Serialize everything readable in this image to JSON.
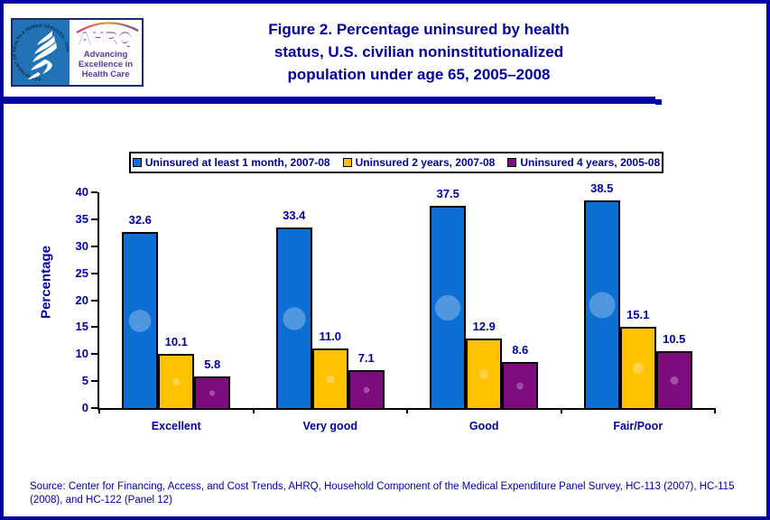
{
  "page": {
    "title_lines": [
      "Figure 2. Percentage uninsured by health",
      "status, U.S. civilian noninstitutionalized",
      "population under age 65, 2005–2008"
    ],
    "source_text": "Source: Center for Financing, Access, and Cost Trends, AHRQ, Household Component of the Medical Expenditure Panel Survey, HC-113 (2007), HC-115 (2008), and HC-122 (Panel 12)"
  },
  "logo": {
    "seal_text": "DEPARTMENT OF HEALTH & HUMAN SERVICES · USA",
    "ahrq": "AHRQ",
    "tagline_lines": [
      "Advancing",
      "Excellence in",
      "Health Care"
    ]
  },
  "colors": {
    "navy_text": "#000099",
    "frame_border": "#0000a0",
    "bar_blue": "#0d6fd4",
    "bar_gold": "#ffc200",
    "bar_purple": "#7d0c7d",
    "hhs_blue": "#2273b5",
    "ahrq_purple": "#6b3fa0"
  },
  "chart_data": {
    "type": "bar",
    "title": "Percentage uninsured by health status, U.S. civilian noninstitutionalized population under age 65, 2005–2008",
    "categories": [
      "Excellent",
      "Very good",
      "Good",
      "Fair/Poor"
    ],
    "series": [
      {
        "name": "Uninsured at least 1 month, 2007-08",
        "color": "#0d6fd4",
        "values": [
          32.6,
          33.4,
          37.5,
          38.5
        ],
        "labels": [
          "32.6",
          "33.4",
          "37.5",
          "38.5"
        ]
      },
      {
        "name": "Uninsured 2 years, 2007-08",
        "color": "#ffc200",
        "values": [
          10.1,
          11.0,
          12.9,
          15.1
        ],
        "labels": [
          "10.1",
          "11.0",
          "12.9",
          "15.1"
        ]
      },
      {
        "name": "Uninsured 4 years, 2005-08",
        "color": "#7d0c7d",
        "values": [
          5.8,
          7.1,
          8.6,
          10.5
        ],
        "labels": [
          "5.8",
          "7.1",
          "8.6",
          "10.5"
        ]
      }
    ],
    "xlabel": "",
    "ylabel": "Percentage",
    "ylim": [
      0,
      40
    ],
    "yticks": [
      0,
      5,
      10,
      15,
      20,
      25,
      30,
      35,
      40
    ],
    "grid": false,
    "legend_position": "top"
  }
}
